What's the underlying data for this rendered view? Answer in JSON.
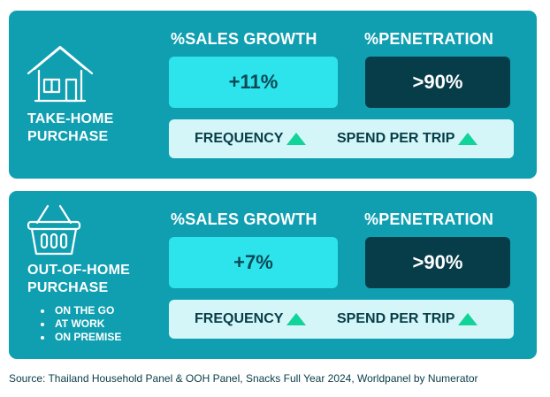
{
  "colors": {
    "panel": "#0f9fb1",
    "sales_box": "#2de3ec",
    "penetration_box": "#073d48",
    "bar": "#d4f6f8",
    "arrow": "#12d49a"
  },
  "take_home": {
    "icon": "house-icon",
    "label_line1": "TAKE-HOME",
    "label_line2": "PURCHASE",
    "sales_growth_header": "%SALES GROWTH",
    "penetration_header": "%PENETRATION",
    "sales_growth_value": "+11%",
    "penetration_value": ">90%",
    "frequency_label": "FREQUENCY",
    "spend_label": "SPEND PER TRIP"
  },
  "out_of_home": {
    "icon": "basket-icon",
    "label_line1": "OUT-OF-HOME",
    "label_line2": "PURCHASE",
    "bullets": [
      "ON THE GO",
      "AT WORK",
      "ON PREMISE"
    ],
    "sales_growth_header": "%SALES GROWTH",
    "penetration_header": "%PENETRATION",
    "sales_growth_value": "+7%",
    "penetration_value": ">90%",
    "frequency_label": "FREQUENCY",
    "spend_label": "SPEND PER TRIP"
  },
  "source": "Source: Thailand Household Panel & OOH Panel, Snacks Full Year 2024, Worldpanel by Numerator"
}
